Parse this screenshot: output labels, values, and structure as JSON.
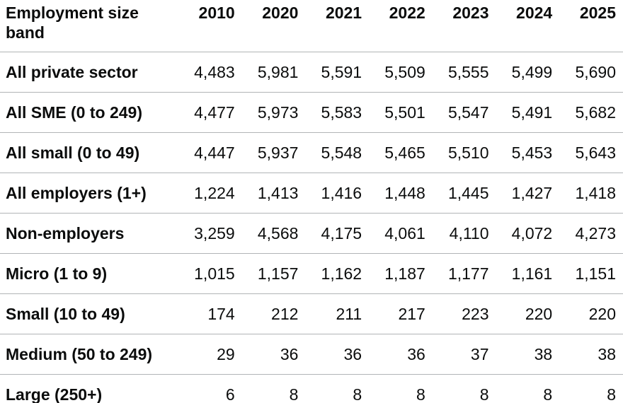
{
  "colors": {
    "text": "#0b0c0c",
    "border": "#b1b4b6",
    "background": "#ffffff"
  },
  "table": {
    "header": {
      "label": "Employment size band",
      "years": [
        "2010",
        "2020",
        "2021",
        "2022",
        "2023",
        "2024",
        "2025"
      ]
    },
    "rows": [
      {
        "label": "All private sector",
        "values": [
          "4,483",
          "5,981",
          "5,591",
          "5,509",
          "5,555",
          "5,499",
          "5,690"
        ]
      },
      {
        "label": "All SME (0 to 249)",
        "values": [
          "4,477",
          "5,973",
          "5,583",
          "5,501",
          "5,547",
          "5,491",
          "5,682"
        ]
      },
      {
        "label": "All small (0 to 49)",
        "values": [
          "4,447",
          "5,937",
          "5,548",
          "5,465",
          "5,510",
          "5,453",
          "5,643"
        ]
      },
      {
        "label": "All employers (1+)",
        "values": [
          "1,224",
          "1,413",
          "1,416",
          "1,448",
          "1,445",
          "1,427",
          "1,418"
        ]
      },
      {
        "label": "Non-employers",
        "values": [
          "3,259",
          "4,568",
          "4,175",
          "4,061",
          "4,110",
          "4,072",
          "4,273"
        ]
      },
      {
        "label": "Micro (1 to 9)",
        "values": [
          "1,015",
          "1,157",
          "1,162",
          "1,187",
          "1,177",
          "1,161",
          "1,151"
        ]
      },
      {
        "label": "Small (10 to 49)",
        "values": [
          "174",
          "212",
          "211",
          "217",
          "223",
          "220",
          "220"
        ]
      },
      {
        "label": "Medium (50 to 249)",
        "values": [
          "29",
          "36",
          "36",
          "36",
          "37",
          "38",
          "38"
        ]
      },
      {
        "label": "Large (250+)",
        "values": [
          "6",
          "8",
          "8",
          "8",
          "8",
          "8",
          "8"
        ]
      }
    ]
  },
  "chart_data": {
    "type": "table",
    "title": "Employment size band",
    "categories": [
      "2010",
      "2020",
      "2021",
      "2022",
      "2023",
      "2024",
      "2025"
    ],
    "series": [
      {
        "name": "All private sector",
        "values": [
          4483,
          5981,
          5591,
          5509,
          5555,
          5499,
          5690
        ]
      },
      {
        "name": "All SME (0 to 249)",
        "values": [
          4477,
          5973,
          5583,
          5501,
          5547,
          5491,
          5682
        ]
      },
      {
        "name": "All small (0 to 49)",
        "values": [
          4447,
          5937,
          5548,
          5465,
          5510,
          5453,
          5643
        ]
      },
      {
        "name": "All employers (1+)",
        "values": [
          1224,
          1413,
          1416,
          1448,
          1445,
          1427,
          1418
        ]
      },
      {
        "name": "Non-employers",
        "values": [
          3259,
          4568,
          4175,
          4061,
          4110,
          4072,
          4273
        ]
      },
      {
        "name": "Micro (1 to 9)",
        "values": [
          1015,
          1157,
          1162,
          1187,
          1177,
          1161,
          1151
        ]
      },
      {
        "name": "Small (10 to 49)",
        "values": [
          174,
          212,
          211,
          217,
          223,
          220,
          220
        ]
      },
      {
        "name": "Medium (50 to 249)",
        "values": [
          29,
          36,
          36,
          36,
          37,
          38,
          38
        ]
      },
      {
        "name": "Large (250+)",
        "values": [
          6,
          8,
          8,
          8,
          8,
          8,
          8
        ]
      }
    ]
  }
}
